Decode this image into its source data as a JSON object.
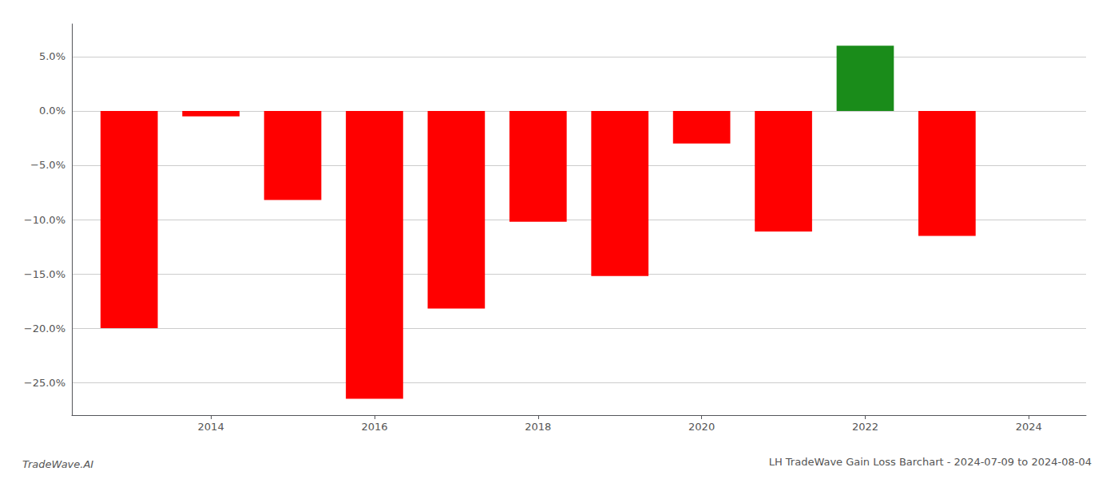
{
  "chart_data": {
    "type": "bar",
    "title": "LH TradeWave Gain Loss Barchart - 2024-07-09 to 2024-08-04",
    "annotations": [
      "TradeWave.AI"
    ],
    "x": [
      2013,
      2014,
      2015,
      2016,
      2017,
      2018,
      2019,
      2020,
      2021,
      2022,
      2023
    ],
    "values": [
      -0.2,
      -0.005,
      -0.082,
      -0.265,
      -0.182,
      -0.102,
      -0.152,
      -0.03,
      -0.111,
      0.06,
      -0.115
    ],
    "colors": [
      "#ff0000",
      "#ff0000",
      "#ff0000",
      "#ff0000",
      "#ff0000",
      "#ff0000",
      "#ff0000",
      "#ff0000",
      "#ff0000",
      "#1a8c1a",
      "#ff0000"
    ],
    "xlim": [
      2012.3,
      2024.7
    ],
    "xticks": [
      2014,
      2016,
      2018,
      2020,
      2022,
      2024
    ],
    "ylim": [
      -0.28,
      0.08
    ],
    "yticks": [
      {
        "value": -0.25,
        "label": "−25.0%"
      },
      {
        "value": -0.2,
        "label": "−20.0%"
      },
      {
        "value": -0.15,
        "label": "−15.0%"
      },
      {
        "value": -0.1,
        "label": "−10.0%"
      },
      {
        "value": -0.05,
        "label": "−5.0%"
      },
      {
        "value": 0.0,
        "label": "0.0%"
      },
      {
        "value": 0.05,
        "label": "5.0%"
      }
    ],
    "grid": true
  }
}
